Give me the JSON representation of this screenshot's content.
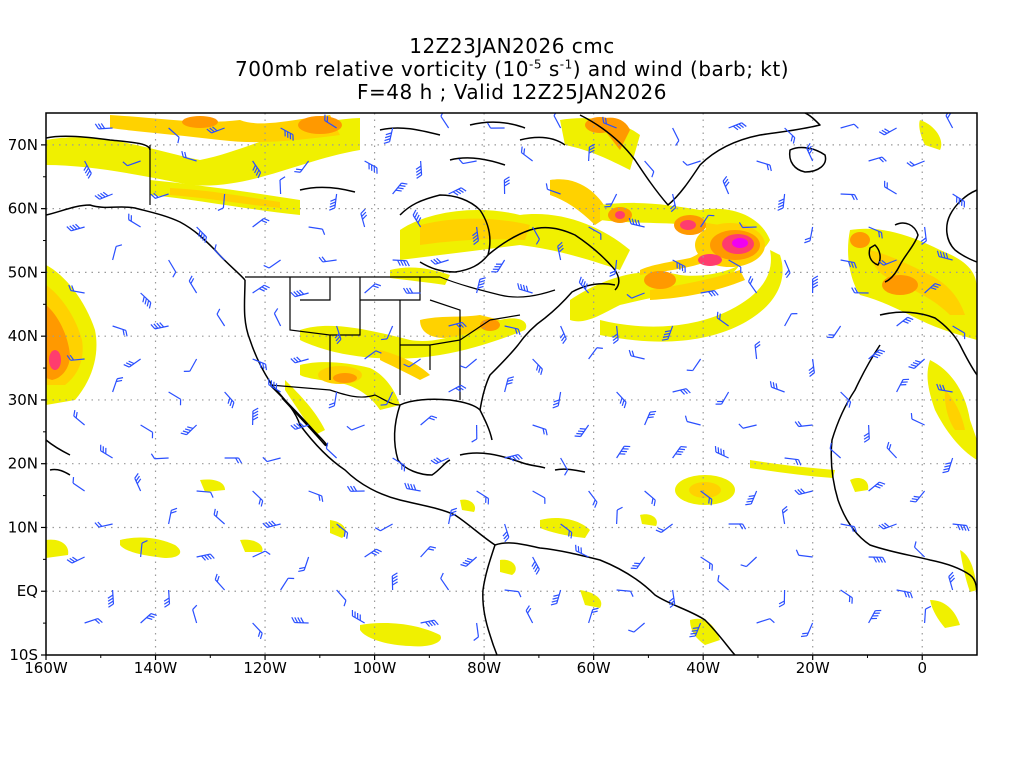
{
  "title": {
    "line1": "12Z23JAN2026 cmc",
    "line2_prefix": "700mb relative vorticity (10",
    "line2_exp1": "-5",
    "line2_mid": " s",
    "line2_exp2": "-1",
    "line2_suffix": ") and wind (barb; kt)",
    "line3": "F=48 h ; Valid 12Z25JAN2026"
  },
  "map": {
    "lat_labels": [
      {
        "text": "70N",
        "lat": 70
      },
      {
        "text": "60N",
        "lat": 60
      },
      {
        "text": "50N",
        "lat": 50
      },
      {
        "text": "40N",
        "lat": 40
      },
      {
        "text": "30N",
        "lat": 30
      },
      {
        "text": "20N",
        "lat": 20
      },
      {
        "text": "10N",
        "lat": 10
      },
      {
        "text": "EQ",
        "lat": 0
      },
      {
        "text": "10S",
        "lat": -10
      }
    ],
    "lon_labels": [
      {
        "text": "160W",
        "lon": -160
      },
      {
        "text": "140W",
        "lon": -140
      },
      {
        "text": "120W",
        "lon": -120
      },
      {
        "text": "100W",
        "lon": -100
      },
      {
        "text": "80W",
        "lon": -80
      },
      {
        "text": "60W",
        "lon": -60
      },
      {
        "text": "40W",
        "lon": -40
      },
      {
        "text": "20W",
        "lon": -20
      },
      {
        "text": "0",
        "lon": 0
      }
    ],
    "lon_range": [
      -160,
      10
    ],
    "lat_range": [
      -10,
      75
    ],
    "grid": "dotted",
    "colors": {
      "shade_low": "#f0f000",
      "shade_mid": "#ffd200",
      "shade_high": "#ff9900",
      "shade_max": "#ff3c6e",
      "shade_peak": "#f000f0",
      "barb": "#2a4fff",
      "coast": "#000000",
      "grid": "#9a9a9a"
    }
  }
}
